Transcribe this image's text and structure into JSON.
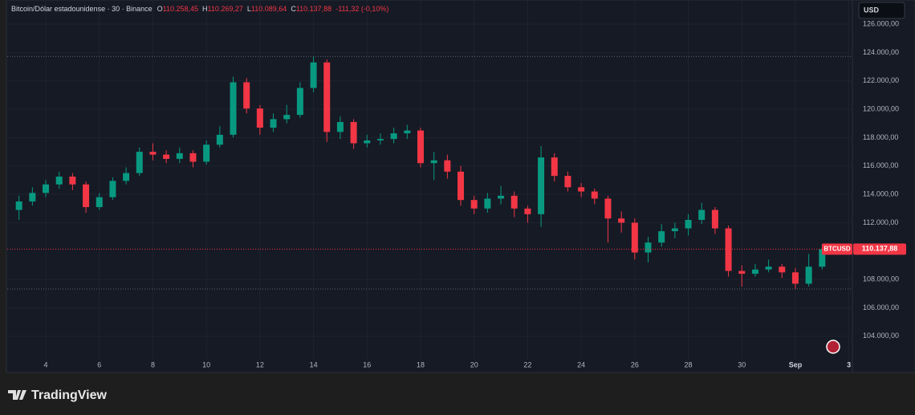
{
  "chart_data": {
    "type": "candlestick",
    "header": {
      "symbol": "Bitcoin/Dólar estadounidense · 30 · Binance",
      "ohlc": [
        {
          "letter": "O",
          "value": "110.258,45"
        },
        {
          "letter": "H",
          "value": "110.269,27"
        },
        {
          "letter": "L",
          "value": "110.089,64"
        },
        {
          "letter": "C",
          "value": "110.137,88"
        }
      ],
      "change": "-111,32 (-0,10%)"
    },
    "currency": "USD",
    "brand": "TradingView",
    "ticker": "BTCUSD",
    "last_price": {
      "value": 110137.88,
      "label": "110.137,88"
    },
    "reference_lines": [
      123720,
      107330
    ],
    "up_color": "#089981",
    "down_color": "#f23645",
    "x": [
      3,
      3.5,
      4,
      4.5,
      5,
      5.5,
      6,
      6.5,
      7,
      7.5,
      8,
      8.5,
      9,
      9.5,
      10,
      10.5,
      11,
      11.5,
      12,
      12.5,
      13,
      13.5,
      14,
      14.5,
      15,
      15.5,
      16,
      16.5,
      17,
      17.5,
      18,
      18.5,
      19,
      19.5,
      20,
      20.5,
      21,
      21.5,
      22,
      22.5,
      23,
      23.5,
      24,
      24.5,
      25,
      25.5,
      26,
      26.5,
      27,
      27.5,
      28,
      28.5,
      29,
      29.5,
      30,
      30.5,
      31,
      31.5,
      32,
      32.5,
      33
    ],
    "open": [
      112900,
      113500,
      114100,
      114700,
      115250,
      114700,
      113100,
      113800,
      114950,
      115500,
      117000,
      116800,
      116500,
      116900,
      116300,
      117500,
      118200,
      121900,
      120050,
      118700,
      119300,
      119600,
      121500,
      123300,
      118400,
      119100,
      117600,
      117800,
      117900,
      118300,
      118500,
      116200,
      116400,
      115600,
      113600,
      113000,
      113700,
      113900,
      113000,
      112600,
      116600,
      115300,
      114500,
      114200,
      113700,
      112300,
      112000,
      109900,
      110600,
      111400,
      111600,
      112200,
      112900,
      111600,
      108600,
      108400,
      108700,
      108900,
      108500,
      107700,
      108900
    ],
    "high": [
      113900,
      114500,
      115000,
      115600,
      115500,
      114900,
      114100,
      115200,
      115900,
      117300,
      117600,
      117100,
      117300,
      117100,
      117800,
      118800,
      122300,
      122200,
      120300,
      119700,
      120300,
      121900,
      123720,
      123500,
      119500,
      119300,
      118200,
      118300,
      118700,
      118900,
      118700,
      117000,
      116800,
      116000,
      113900,
      114100,
      114600,
      114200,
      113200,
      117400,
      116900,
      115600,
      114800,
      114400,
      113900,
      112800,
      112300,
      111000,
      111900,
      112000,
      112600,
      113400,
      113100,
      111800,
      109000,
      109100,
      109400,
      109100,
      108800,
      109800,
      110500
    ],
    "low": [
      112200,
      113200,
      113800,
      114400,
      114300,
      112700,
      112900,
      113600,
      114700,
      115300,
      116400,
      116200,
      116200,
      115900,
      116100,
      117300,
      118000,
      119700,
      118200,
      118400,
      119000,
      119400,
      121200,
      117700,
      117900,
      117200,
      117300,
      117500,
      117600,
      117900,
      115900,
      115000,
      115100,
      113200,
      112600,
      112700,
      113300,
      112400,
      112000,
      111700,
      114900,
      114200,
      113800,
      113300,
      110600,
      111300,
      109400,
      109200,
      110300,
      110900,
      111100,
      111900,
      111200,
      108200,
      107500,
      108200,
      108500,
      108100,
      107330,
      107500,
      108700
    ],
    "close": [
      113500,
      114100,
      114700,
      115250,
      114700,
      113100,
      113800,
      114950,
      115500,
      117000,
      116800,
      116500,
      116900,
      116300,
      117500,
      118200,
      121900,
      120050,
      118700,
      119300,
      119600,
      121500,
      123300,
      118400,
      119100,
      117600,
      117800,
      117900,
      118300,
      118500,
      116200,
      116400,
      115600,
      113600,
      113000,
      113700,
      113900,
      113000,
      112600,
      116600,
      115300,
      114500,
      114200,
      113700,
      112300,
      112000,
      109900,
      110600,
      111400,
      111600,
      112200,
      112900,
      111600,
      108600,
      108400,
      108700,
      108900,
      108500,
      107700,
      108900,
      110137.88
    ],
    "xlim": [
      2.56,
      34.13
    ],
    "xticks": [
      4,
      6,
      8,
      10,
      12,
      14,
      16,
      18,
      20,
      22,
      24,
      26,
      28,
      30,
      {
        "value": 32,
        "label": "Sep"
      },
      {
        "value": 34,
        "label": "3"
      }
    ],
    "ylim": [
      101500,
      127700
    ],
    "yticks": [
      {
        "value": 104000,
        "label": "104.000,00"
      },
      {
        "value": 106000,
        "label": "106.000,00"
      },
      {
        "value": 108000,
        "label": "108.000,00"
      },
      {
        "value": 112000,
        "label": "112.000,00"
      },
      {
        "value": 114000,
        "label": "114.000,00"
      },
      {
        "value": 116000,
        "label": "116.000,00"
      },
      {
        "value": 118000,
        "label": "118.000,00"
      },
      {
        "value": 120000,
        "label": "120.000,00"
      },
      {
        "value": 122000,
        "label": "122.000,00"
      },
      {
        "value": 124000,
        "label": "124.000,00"
      },
      {
        "value": 126000,
        "label": "126.000,00"
      }
    ],
    "grid": true
  }
}
